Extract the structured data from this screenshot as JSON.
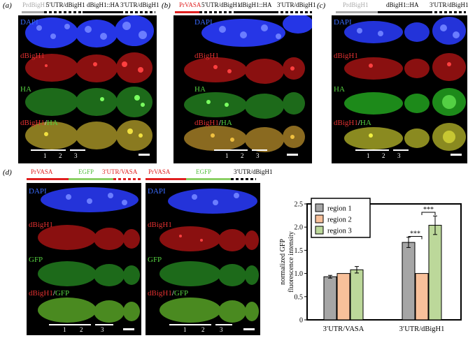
{
  "panels": {
    "a": {
      "label": "(a)",
      "construct": [
        "PrdBigH1",
        "5′UTR/dBigH1",
        "dBigH1::HA",
        "3′UTR/dBigH1"
      ],
      "channels": [
        "DAPI",
        "dBigH1",
        "HA",
        "dBigH1",
        "/",
        "HA"
      ],
      "regions": [
        "1",
        "2",
        "3"
      ]
    },
    "b": {
      "label": "(b)",
      "construct": [
        "PrVASA",
        "5′UTR/dBigH1",
        "dBigH1::HA",
        "3′UTR/dBigH1"
      ],
      "channels": [
        "DAPI",
        "dBigH1",
        "HA",
        "dBigH1",
        "/",
        "HA"
      ],
      "regions": [
        "1",
        "2",
        "3"
      ]
    },
    "c": {
      "label": "(c)",
      "construct": [
        "PrdBigH1",
        "dBigH1::HA",
        "3′UTR/dBigH1"
      ],
      "channels": [
        "DAPI",
        "dBigH1",
        "HA",
        "dBigH1",
        "/",
        "HA"
      ],
      "regions": [
        "1",
        "2",
        "3"
      ]
    },
    "d": {
      "label": "(d)",
      "construct_left": [
        "PrVASA",
        "EGFP",
        "3′UTR/VASA"
      ],
      "construct_right": [
        "PrVASA",
        "EGFP",
        "3′UTR/dBigH1"
      ],
      "channels": [
        "DAPI",
        "dBigH1",
        "GFP",
        "dBigH1",
        "/",
        "GFP"
      ],
      "regions": [
        "1",
        "2",
        "3"
      ]
    }
  },
  "chart_data": {
    "type": "bar",
    "categories": [
      "3′UTR/VASA",
      "3′UTR/dBigH1"
    ],
    "series": [
      {
        "name": "region 1",
        "color": "#a6a6a6",
        "values": [
          0.93,
          1.67
        ],
        "errors": [
          0.03,
          0.11
        ]
      },
      {
        "name": "region 2",
        "color": "#f8c09a",
        "values": [
          1.0,
          1.0
        ],
        "errors": [
          0.0,
          0.0
        ]
      },
      {
        "name": "region 3",
        "color": "#bcd89a",
        "values": [
          1.08,
          2.04
        ],
        "errors": [
          0.07,
          0.2
        ]
      }
    ],
    "ylabel": "normalized GFP\nfluorescence intensity",
    "ylim": [
      0,
      2.5
    ],
    "yticks": [
      0,
      0.5,
      1.0,
      1.5,
      2.0,
      2.5
    ],
    "ytick_labels": [
      "0",
      "0.5",
      "1.0",
      "1.5",
      "2.0",
      "2.5"
    ],
    "significance": [
      "***",
      "***"
    ],
    "legend_position": "top-left",
    "grid": false
  }
}
